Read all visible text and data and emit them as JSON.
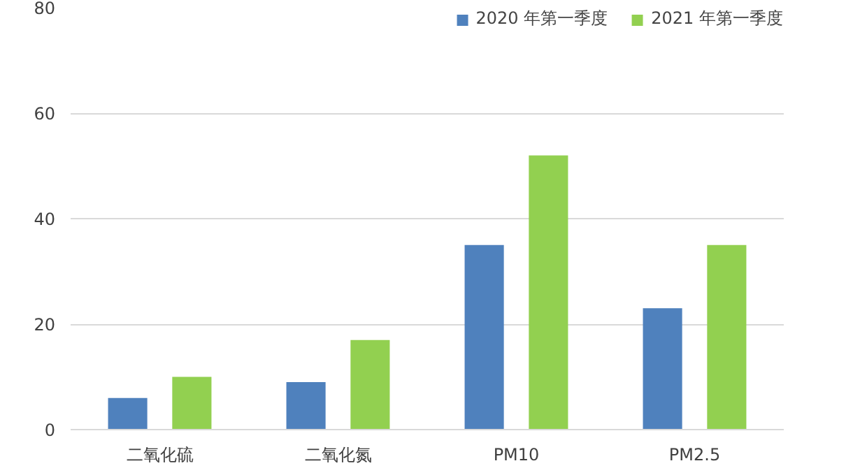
{
  "chart_data": {
    "type": "bar",
    "categories": [
      "二氧化硫",
      "二氧化氮",
      "PM10",
      "PM2.5"
    ],
    "series": [
      {
        "name": "2020 年第一季度",
        "color": "#4f81bd",
        "values": [
          6,
          9,
          35,
          23
        ]
      },
      {
        "name": "2021 年第一季度",
        "color": "#92d050",
        "values": [
          10,
          17,
          52,
          35
        ]
      }
    ],
    "ylim": [
      0,
      80
    ],
    "yticks": [
      0,
      20,
      40,
      60,
      80
    ],
    "grid": "y",
    "legend": "top right"
  }
}
